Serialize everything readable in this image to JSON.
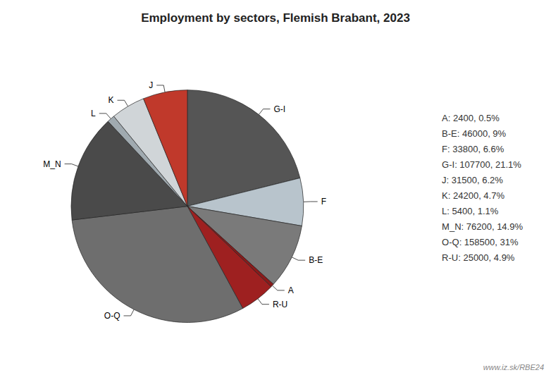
{
  "chart_data": {
    "type": "pie",
    "title": "Employment by sectors, Flemish Brabant, 2023",
    "categories": [
      "G-I",
      "F",
      "B-E",
      "A",
      "R-U",
      "O-Q",
      "M_N",
      "L",
      "K",
      "J"
    ],
    "values": [
      107700,
      33800,
      46000,
      2400,
      25000,
      158500,
      76200,
      5400,
      24200,
      31500
    ],
    "colors": [
      "#555555",
      "#b8c4cc",
      "#7a7a7a",
      "#8B1A1A",
      "#9e2020",
      "#6e6e6e",
      "#4a4a4a",
      "#a0aab0",
      "#d0d5d8",
      "#c0392b"
    ],
    "legend": "right",
    "legend_labels": [
      "A: 2400, 0.5%",
      "B-E: 46000, 9%",
      "F: 33800, 6.6%",
      "G-I: 107700, 21.1%",
      "J: 31500, 6.2%",
      "K: 24200, 4.7%",
      "L: 5400, 1.1%",
      "M_N: 76200, 14.9%",
      "O-Q: 158500, 31%",
      "R-U: 25000, 4.9%"
    ],
    "annotations": [
      "www.iz.sk/RBE24"
    ]
  }
}
